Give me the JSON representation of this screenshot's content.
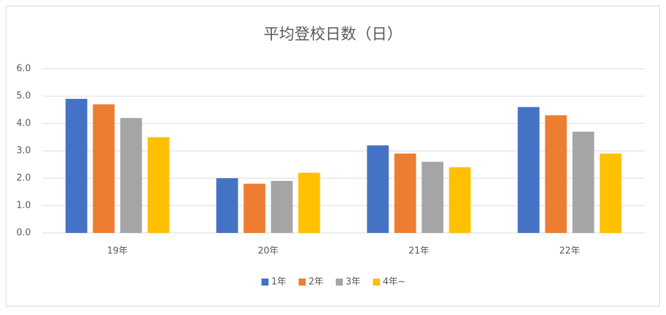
{
  "chart_data": {
    "type": "bar",
    "title": "平均登校日数（日）",
    "categories": [
      "19年",
      "20年",
      "21年",
      "22年"
    ],
    "series": [
      {
        "name": "1年",
        "color": "#4472c4",
        "values": [
          4.9,
          2.0,
          3.2,
          4.6
        ]
      },
      {
        "name": "2年",
        "color": "#ed7d31",
        "values": [
          4.7,
          1.8,
          2.9,
          4.3
        ]
      },
      {
        "name": "3年",
        "color": "#a5a5a5",
        "values": [
          4.2,
          1.9,
          2.6,
          3.7
        ]
      },
      {
        "name": "4年~",
        "color": "#ffc000",
        "values": [
          3.5,
          2.2,
          2.4,
          2.9
        ]
      }
    ],
    "ylim": [
      0,
      6
    ],
    "yticks": [
      {
        "value": 0,
        "label": "0.0"
      },
      {
        "value": 1,
        "label": "1.0"
      },
      {
        "value": 2,
        "label": "2.0"
      },
      {
        "value": 3,
        "label": "3.0"
      },
      {
        "value": 4,
        "label": "4.0"
      },
      {
        "value": 5,
        "label": "5.0"
      },
      {
        "value": 6,
        "label": "6.0"
      }
    ],
    "grid": true,
    "legend": "bottom"
  }
}
